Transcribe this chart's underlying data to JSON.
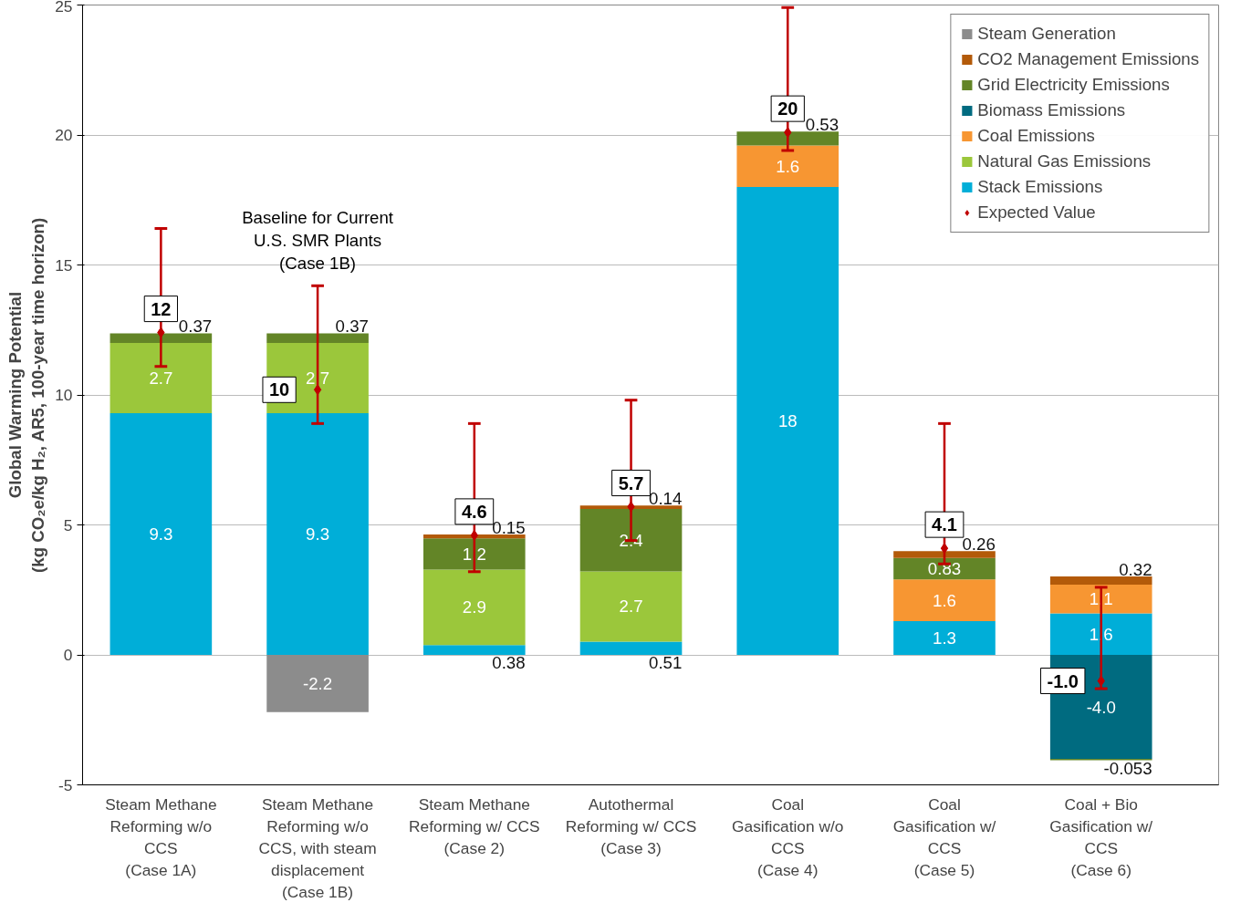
{
  "chart_data": {
    "type": "bar",
    "stacked": true,
    "ylabel": "Global Warming Potential\n(kg CO₂e/kg H₂, AR5, 100-year time horizon)",
    "categories": [
      "Steam Methane Reforming w/o CCS (Case 1A)",
      "Steam Methane Reforming w/o CCS, with steam displacement (Case 1B)",
      "Steam Methane Reforming w/ CCS (Case 2)",
      "Autothermal Reforming w/ CCS (Case 3)",
      "Coal Gasification w/o CCS (Case 4)",
      "Coal Gasification w/ CCS (Case 5)",
      "Coal + Bio Gasification w/ CCS (Case 6)"
    ],
    "ylim": [
      -5,
      25
    ],
    "yticks": [
      -5,
      0,
      5,
      10,
      15,
      20,
      25
    ],
    "grid": "y",
    "legend": "top right",
    "data_labels": true,
    "annotations": [
      "Baseline for Current\nU.S. SMR Plants\n(Case 1B)"
    ],
    "series": [
      {
        "name": "Stack Emissions",
        "color": "#00aed8",
        "values": [
          9.3,
          9.3,
          0.38,
          0.51,
          18,
          1.3,
          1.6
        ]
      },
      {
        "name": "Natural Gas Emissions",
        "color": "#9bc73b",
        "values": [
          2.7,
          2.7,
          2.9,
          2.7,
          null,
          null,
          null
        ]
      },
      {
        "name": "Coal Emissions",
        "color": "#f79632",
        "values": [
          null,
          null,
          null,
          null,
          1.6,
          1.6,
          1.1
        ]
      },
      {
        "name": "Biomass Emissions",
        "color": "#006b80",
        "values": [
          null,
          null,
          null,
          null,
          null,
          null,
          -4.0
        ],
        "value_labels": [
          null,
          null,
          null,
          null,
          null,
          null,
          "-4.0"
        ]
      },
      {
        "name": "Grid Electricity Emissions",
        "color": "#638527",
        "values": [
          0.37,
          0.37,
          1.2,
          2.4,
          0.53,
          0.83,
          -0.053
        ]
      },
      {
        "name": "CO2 Management Emissions",
        "color": "#b35a09",
        "values": [
          null,
          null,
          0.15,
          0.14,
          null,
          0.26,
          0.32
        ]
      },
      {
        "name": "Steam Generation",
        "color": "#8c8c8c",
        "values": [
          null,
          -2.2,
          null,
          null,
          null,
          null,
          null
        ]
      },
      {
        "name": "Expected Value",
        "type": "scatter",
        "marker": "diamond",
        "color": "#c00000",
        "values": [
          12.4,
          10.2,
          4.6,
          5.7,
          20.1,
          4.1,
          -1.0
        ],
        "value_labels": [
          "12",
          "10",
          "4.6",
          "5.7",
          "20",
          "4.1",
          "-1.0"
        ],
        "errors": [
          [
            11.1,
            16.4
          ],
          [
            8.9,
            14.2
          ],
          [
            3.2,
            8.9
          ],
          [
            4.4,
            9.8
          ],
          [
            19.4,
            24.9
          ],
          [
            3.5,
            8.9
          ],
          [
            -1.3,
            2.6
          ]
        ]
      }
    ]
  }
}
